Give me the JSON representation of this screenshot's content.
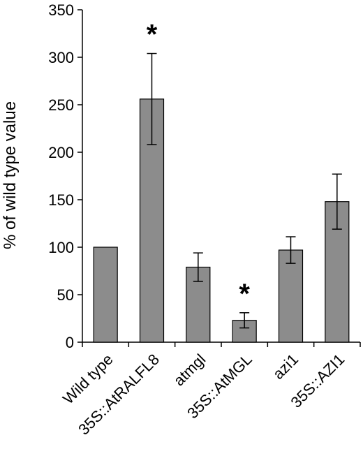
{
  "chart_data": {
    "type": "bar",
    "title": "",
    "xlabel": "",
    "ylabel": "% of wild type value",
    "ylim": [
      0,
      350
    ],
    "yticks": [
      0,
      50,
      100,
      150,
      200,
      250,
      300,
      350
    ],
    "grid": false,
    "categories": [
      "Wild type",
      "35S::AtRALFL8",
      "atmgl",
      "35S::AtMGL",
      "azi1",
      "35S::AZI1"
    ],
    "values": [
      100,
      256,
      79,
      23,
      97,
      148
    ],
    "errors": [
      0,
      48,
      15,
      8,
      14,
      29
    ],
    "significant": [
      false,
      true,
      false,
      true,
      false,
      false
    ],
    "significance_marker": "*",
    "bar_color": "#8c8c8c",
    "bar_edge_color": "#000000"
  }
}
